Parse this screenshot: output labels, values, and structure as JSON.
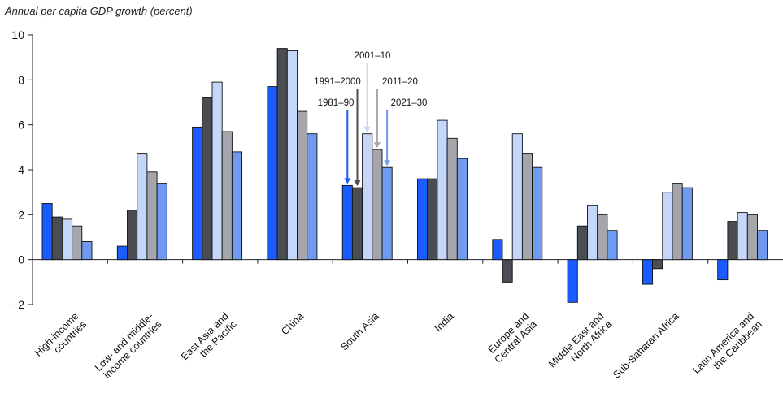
{
  "chart_data": {
    "type": "bar",
    "title": "Annual per capita GDP growth (percent)",
    "ylim": [
      -2,
      10
    ],
    "yticks": [
      -2,
      0,
      2,
      4,
      6,
      8,
      10
    ],
    "grid": false,
    "categories": [
      [
        "High-income",
        "countries"
      ],
      [
        "Low- and middle-",
        "income countries"
      ],
      [
        "East Asia and",
        "the Pacific"
      ],
      [
        "China"
      ],
      [
        "South Asia"
      ],
      [
        "India"
      ],
      [
        "Europe and",
        "Central Asia"
      ],
      [
        "Middle East and",
        "North Africa"
      ],
      [
        "Sub-Saharan Africa"
      ],
      [
        "Latin America and",
        "the Caribbean"
      ]
    ],
    "series": [
      {
        "name": "1981–90",
        "color": "#1a5cff",
        "values": [
          2.5,
          0.6,
          5.9,
          7.7,
          3.3,
          3.6,
          0.9,
          -1.9,
          -1.1,
          -0.9
        ]
      },
      {
        "name": "1991–2000",
        "color": "#4a4d52",
        "values": [
          1.9,
          2.2,
          7.2,
          9.4,
          3.2,
          3.6,
          -1.0,
          1.5,
          -0.4,
          1.7
        ]
      },
      {
        "name": "2001–10",
        "color": "#c5d6fb",
        "values": [
          1.8,
          4.7,
          7.9,
          9.3,
          5.6,
          6.2,
          5.6,
          2.4,
          3.0,
          2.1
        ]
      },
      {
        "name": "2011–20",
        "color": "#a4a6ab",
        "values": [
          1.5,
          3.9,
          5.7,
          6.6,
          4.9,
          5.4,
          4.7,
          2.0,
          3.4,
          2.0
        ]
      },
      {
        "name": "2021–30",
        "color": "#6f9af0",
        "values": [
          0.8,
          3.4,
          4.8,
          5.6,
          4.1,
          4.5,
          4.1,
          1.3,
          3.2,
          1.3
        ]
      }
    ],
    "annotations": {
      "category_index": 4,
      "labels": [
        "1981–90",
        "1991–2000",
        "2001–10",
        "2011–20",
        "2021–30"
      ],
      "arrow_colors": [
        "#1a5cff",
        "#4a4d52",
        "#c5d6fb",
        "#a4a6ab",
        "#6f9af0"
      ]
    }
  }
}
